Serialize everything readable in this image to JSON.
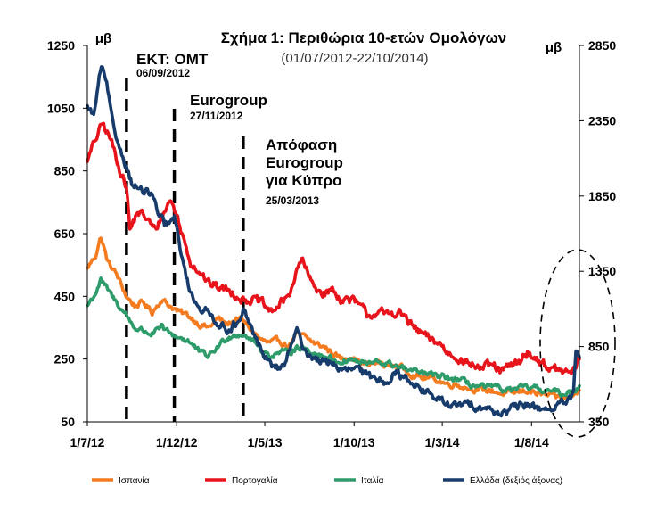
{
  "chart_data": {
    "type": "line",
    "title": "Σχήμα 1: Περιθώρια 10-ετών Ομολόγων",
    "subtitle": "(01/07/2012-22/10/2014)",
    "ylabel_left": "μβ",
    "ylabel_right": "μβ",
    "x_ticks": [
      "1/7/12",
      "1/12/12",
      "1/5/13",
      "1/10/13",
      "1/3/14",
      "1/8/14"
    ],
    "x_tick_dates": [
      "2012-07-01",
      "2012-12-01",
      "2013-05-01",
      "2013-10-01",
      "2014-03-01",
      "2014-08-01"
    ],
    "x_range": [
      "2012-07-01",
      "2014-10-22"
    ],
    "y_left": {
      "ticks": [
        50,
        250,
        450,
        650,
        850,
        1050,
        1250
      ],
      "range": [
        50,
        1250
      ]
    },
    "y_right": {
      "ticks": [
        350,
        850,
        1350,
        1850,
        2350,
        2850
      ],
      "range": [
        350,
        2850
      ]
    },
    "grid": false,
    "legend_position": "bottom",
    "annotations": [
      {
        "label": "ΕΚΤ: ΟΜΤ",
        "date_label": "06/09/2012",
        "date": "2012-09-06"
      },
      {
        "label": "Eurogroup",
        "date_label": "27/11/2012",
        "date": "2012-11-27"
      },
      {
        "label_lines": [
          "Απόφαση",
          "Eurogroup",
          "για Κύπρο"
        ],
        "date_label": "25/03/2013",
        "date": "2013-03-25"
      }
    ],
    "series": [
      {
        "name": "Ισπανία",
        "color": "#f47b20",
        "axis": "left",
        "points": [
          [
            "2012-07-01",
            540
          ],
          [
            "2012-07-15",
            580
          ],
          [
            "2012-07-24",
            640
          ],
          [
            "2012-08-05",
            560
          ],
          [
            "2012-08-20",
            520
          ],
          [
            "2012-09-06",
            450
          ],
          [
            "2012-09-20",
            420
          ],
          [
            "2012-10-05",
            430
          ],
          [
            "2012-10-20",
            400
          ],
          [
            "2012-11-05",
            440
          ],
          [
            "2012-11-20",
            420
          ],
          [
            "2012-12-05",
            400
          ],
          [
            "2012-12-20",
            390
          ],
          [
            "2013-01-10",
            360
          ],
          [
            "2013-01-25",
            350
          ],
          [
            "2013-02-10",
            380
          ],
          [
            "2013-02-25",
            360
          ],
          [
            "2013-03-15",
            380
          ],
          [
            "2013-03-25",
            370
          ],
          [
            "2013-04-10",
            340
          ],
          [
            "2013-04-25",
            310
          ],
          [
            "2013-05-10",
            300
          ],
          [
            "2013-05-25",
            310
          ],
          [
            "2013-06-10",
            290
          ],
          [
            "2013-06-25",
            330
          ],
          [
            "2013-07-10",
            320
          ],
          [
            "2013-07-25",
            300
          ],
          [
            "2013-08-10",
            290
          ],
          [
            "2013-08-25",
            270
          ],
          [
            "2013-09-10",
            250
          ],
          [
            "2013-09-25",
            260
          ],
          [
            "2013-10-10",
            240
          ],
          [
            "2013-10-25",
            230
          ],
          [
            "2013-11-10",
            240
          ],
          [
            "2013-11-25",
            230
          ],
          [
            "2013-12-10",
            230
          ],
          [
            "2013-12-25",
            220
          ],
          [
            "2014-01-10",
            200
          ],
          [
            "2014-01-25",
            190
          ],
          [
            "2014-02-10",
            190
          ],
          [
            "2014-02-25",
            180
          ],
          [
            "2014-03-10",
            170
          ],
          [
            "2014-03-25",
            170
          ],
          [
            "2014-04-10",
            160
          ],
          [
            "2014-04-25",
            155
          ],
          [
            "2014-05-10",
            150
          ],
          [
            "2014-05-25",
            150
          ],
          [
            "2014-06-10",
            140
          ],
          [
            "2014-06-25",
            140
          ],
          [
            "2014-07-10",
            145
          ],
          [
            "2014-07-25",
            150
          ],
          [
            "2014-08-10",
            140
          ],
          [
            "2014-08-25",
            135
          ],
          [
            "2014-09-10",
            130
          ],
          [
            "2014-09-25",
            125
          ],
          [
            "2014-10-10",
            130
          ],
          [
            "2014-10-22",
            150
          ]
        ]
      },
      {
        "name": "Πορτογαλία",
        "color": "#e8141b",
        "axis": "left",
        "points": [
          [
            "2012-07-01",
            880
          ],
          [
            "2012-07-15",
            950
          ],
          [
            "2012-07-27",
            1000
          ],
          [
            "2012-08-10",
            950
          ],
          [
            "2012-08-25",
            860
          ],
          [
            "2012-09-06",
            800
          ],
          [
            "2012-09-12",
            660
          ],
          [
            "2012-09-25",
            720
          ],
          [
            "2012-10-10",
            700
          ],
          [
            "2012-10-25",
            660
          ],
          [
            "2012-11-10",
            720
          ],
          [
            "2012-11-20",
            760
          ],
          [
            "2012-12-01",
            710
          ],
          [
            "2012-12-10",
            650
          ],
          [
            "2012-12-25",
            560
          ],
          [
            "2013-01-10",
            530
          ],
          [
            "2013-01-25",
            490
          ],
          [
            "2013-02-10",
            480
          ],
          [
            "2013-02-25",
            470
          ],
          [
            "2013-03-10",
            460
          ],
          [
            "2013-03-25",
            440
          ],
          [
            "2013-04-10",
            440
          ],
          [
            "2013-04-25",
            430
          ],
          [
            "2013-05-10",
            400
          ],
          [
            "2013-05-25",
            420
          ],
          [
            "2013-06-10",
            450
          ],
          [
            "2013-06-25",
            530
          ],
          [
            "2013-07-05",
            570
          ],
          [
            "2013-07-15",
            510
          ],
          [
            "2013-07-25",
            480
          ],
          [
            "2013-08-10",
            460
          ],
          [
            "2013-08-25",
            470
          ],
          [
            "2013-09-10",
            440
          ],
          [
            "2013-09-25",
            440
          ],
          [
            "2013-10-10",
            420
          ],
          [
            "2013-10-25",
            390
          ],
          [
            "2013-11-10",
            400
          ],
          [
            "2013-11-25",
            390
          ],
          [
            "2013-12-10",
            400
          ],
          [
            "2013-12-25",
            390
          ],
          [
            "2014-01-10",
            350
          ],
          [
            "2014-01-25",
            330
          ],
          [
            "2014-02-10",
            310
          ],
          [
            "2014-02-25",
            300
          ],
          [
            "2014-03-10",
            270
          ],
          [
            "2014-03-25",
            260
          ],
          [
            "2014-04-10",
            240
          ],
          [
            "2014-04-25",
            230
          ],
          [
            "2014-05-10",
            220
          ],
          [
            "2014-05-25",
            230
          ],
          [
            "2014-06-10",
            210
          ],
          [
            "2014-06-25",
            225
          ],
          [
            "2014-07-10",
            240
          ],
          [
            "2014-07-25",
            270
          ],
          [
            "2014-08-10",
            250
          ],
          [
            "2014-08-25",
            230
          ],
          [
            "2014-09-10",
            215
          ],
          [
            "2014-09-25",
            210
          ],
          [
            "2014-10-10",
            205
          ],
          [
            "2014-10-22",
            250
          ]
        ]
      },
      {
        "name": "Ιταλία",
        "color": "#2e9b6a",
        "axis": "left",
        "points": [
          [
            "2012-07-01",
            420
          ],
          [
            "2012-07-15",
            460
          ],
          [
            "2012-07-24",
            500
          ],
          [
            "2012-08-05",
            470
          ],
          [
            "2012-08-20",
            430
          ],
          [
            "2012-09-06",
            390
          ],
          [
            "2012-09-20",
            350
          ],
          [
            "2012-10-05",
            340
          ],
          [
            "2012-10-20",
            330
          ],
          [
            "2012-11-05",
            350
          ],
          [
            "2012-11-20",
            330
          ],
          [
            "2012-12-05",
            320
          ],
          [
            "2012-12-20",
            310
          ],
          [
            "2013-01-10",
            270
          ],
          [
            "2013-01-25",
            260
          ],
          [
            "2013-02-10",
            290
          ],
          [
            "2013-02-25",
            320
          ],
          [
            "2013-03-15",
            330
          ],
          [
            "2013-03-25",
            330
          ],
          [
            "2013-04-10",
            310
          ],
          [
            "2013-04-25",
            280
          ],
          [
            "2013-05-10",
            260
          ],
          [
            "2013-05-25",
            270
          ],
          [
            "2013-06-10",
            270
          ],
          [
            "2013-06-25",
            290
          ],
          [
            "2013-07-10",
            280
          ],
          [
            "2013-07-25",
            270
          ],
          [
            "2013-08-10",
            260
          ],
          [
            "2013-08-25",
            250
          ],
          [
            "2013-09-10",
            240
          ],
          [
            "2013-09-25",
            250
          ],
          [
            "2013-10-10",
            240
          ],
          [
            "2013-10-25",
            235
          ],
          [
            "2013-11-10",
            240
          ],
          [
            "2013-11-25",
            235
          ],
          [
            "2013-12-10",
            230
          ],
          [
            "2013-12-25",
            220
          ],
          [
            "2014-01-10",
            210
          ],
          [
            "2014-01-25",
            205
          ],
          [
            "2014-02-10",
            200
          ],
          [
            "2014-02-25",
            195
          ],
          [
            "2014-03-10",
            190
          ],
          [
            "2014-03-25",
            185
          ],
          [
            "2014-04-10",
            175
          ],
          [
            "2014-04-25",
            165
          ],
          [
            "2014-05-10",
            160
          ],
          [
            "2014-05-25",
            160
          ],
          [
            "2014-06-10",
            155
          ],
          [
            "2014-06-25",
            150
          ],
          [
            "2014-07-10",
            155
          ],
          [
            "2014-07-25",
            160
          ],
          [
            "2014-08-10",
            155
          ],
          [
            "2014-08-25",
            150
          ],
          [
            "2014-09-10",
            145
          ],
          [
            "2014-09-25",
            140
          ],
          [
            "2014-10-10",
            145
          ],
          [
            "2014-10-22",
            165
          ]
        ]
      },
      {
        "name": "Ελλάδα (δεξιός άξονας)",
        "color": "#173b6b",
        "axis": "right",
        "points": [
          [
            "2012-07-01",
            2450
          ],
          [
            "2012-07-12",
            2380
          ],
          [
            "2012-07-25",
            2720
          ],
          [
            "2012-08-05",
            2550
          ],
          [
            "2012-08-15",
            2280
          ],
          [
            "2012-08-25",
            2180
          ],
          [
            "2012-09-06",
            2050
          ],
          [
            "2012-09-15",
            1940
          ],
          [
            "2012-09-25",
            1900
          ],
          [
            "2012-10-10",
            1870
          ],
          [
            "2012-10-20",
            1860
          ],
          [
            "2012-10-30",
            1730
          ],
          [
            "2012-11-10",
            1660
          ],
          [
            "2012-11-20",
            1670
          ],
          [
            "2012-11-27",
            1700
          ],
          [
            "2012-12-05",
            1550
          ],
          [
            "2012-12-15",
            1350
          ],
          [
            "2012-12-25",
            1200
          ],
          [
            "2013-01-10",
            1110
          ],
          [
            "2013-01-25",
            1070
          ],
          [
            "2013-02-10",
            1010
          ],
          [
            "2013-02-25",
            960
          ],
          [
            "2013-03-10",
            1000
          ],
          [
            "2013-03-20",
            1000
          ],
          [
            "2013-03-25",
            1080
          ],
          [
            "2013-04-05",
            1000
          ],
          [
            "2013-04-15",
            900
          ],
          [
            "2013-04-25",
            830
          ],
          [
            "2013-05-05",
            760
          ],
          [
            "2013-05-15",
            720
          ],
          [
            "2013-05-25",
            700
          ],
          [
            "2013-06-05",
            740
          ],
          [
            "2013-06-15",
            850
          ],
          [
            "2013-06-25",
            950
          ],
          [
            "2013-07-05",
            860
          ],
          [
            "2013-07-15",
            790
          ],
          [
            "2013-07-25",
            780
          ],
          [
            "2013-08-10",
            740
          ],
          [
            "2013-08-25",
            750
          ],
          [
            "2013-09-10",
            680
          ],
          [
            "2013-09-25",
            700
          ],
          [
            "2013-10-10",
            690
          ],
          [
            "2013-10-25",
            650
          ],
          [
            "2013-11-10",
            640
          ],
          [
            "2013-11-25",
            620
          ],
          [
            "2013-12-10",
            680
          ],
          [
            "2013-12-25",
            640
          ],
          [
            "2014-01-10",
            620
          ],
          [
            "2014-01-25",
            560
          ],
          [
            "2014-02-10",
            530
          ],
          [
            "2014-02-25",
            490
          ],
          [
            "2014-03-10",
            470
          ],
          [
            "2014-03-25",
            450
          ],
          [
            "2014-04-10",
            470
          ],
          [
            "2014-04-25",
            460
          ],
          [
            "2014-05-10",
            450
          ],
          [
            "2014-05-25",
            420
          ],
          [
            "2014-06-10",
            410
          ],
          [
            "2014-06-25",
            430
          ],
          [
            "2014-07-10",
            450
          ],
          [
            "2014-07-25",
            470
          ],
          [
            "2014-08-10",
            440
          ],
          [
            "2014-08-25",
            440
          ],
          [
            "2014-09-10",
            440
          ],
          [
            "2014-09-25",
            480
          ],
          [
            "2014-10-05",
            490
          ],
          [
            "2014-10-12",
            530
          ],
          [
            "2014-10-16",
            820
          ],
          [
            "2014-10-22",
            780
          ]
        ]
      }
    ]
  }
}
